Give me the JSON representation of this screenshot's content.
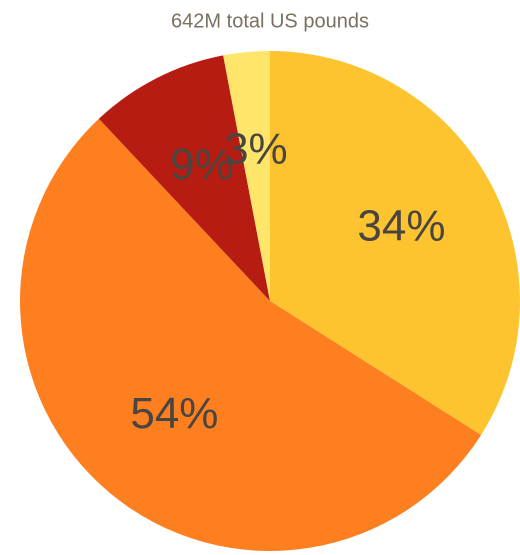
{
  "chart_data": {
    "type": "pie",
    "title": "642M total US pounds",
    "values": [
      34,
      54,
      9,
      3
    ],
    "value_labels": [
      "34%",
      "54%",
      "9%",
      "3%"
    ],
    "colors": [
      "#fec430",
      "#fd7f20",
      "#b71c13",
      "#ffe66a"
    ]
  }
}
